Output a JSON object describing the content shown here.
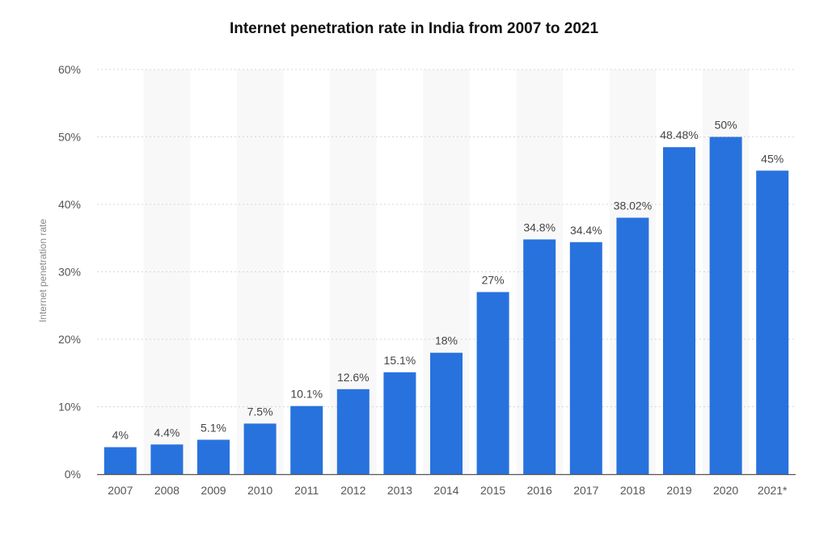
{
  "chart_data": {
    "type": "bar",
    "title": "Internet penetration rate in India from 2007 to 2021",
    "xlabel": "",
    "ylabel": "Internet penetration rate",
    "categories": [
      "2007",
      "2008",
      "2009",
      "2010",
      "2011",
      "2012",
      "2013",
      "2014",
      "2015",
      "2016",
      "2017",
      "2018",
      "2019",
      "2020",
      "2021*"
    ],
    "values": [
      4,
      4.4,
      5.1,
      7.5,
      10.1,
      12.6,
      15.1,
      18,
      27,
      34.8,
      34.4,
      38.02,
      48.48,
      50,
      45
    ],
    "value_labels": [
      "4%",
      "4.4%",
      "5.1%",
      "7.5%",
      "10.1%",
      "12.6%",
      "15.1%",
      "18%",
      "27%",
      "34.8%",
      "34.4%",
      "38.02%",
      "48.48%",
      "50%",
      "45%"
    ],
    "ylim": [
      0,
      60
    ],
    "yticks": [
      0,
      10,
      20,
      30,
      40,
      50,
      60
    ],
    "ytick_labels": [
      "0%",
      "10%",
      "20%",
      "30%",
      "40%",
      "50%",
      "60%"
    ],
    "grid": true,
    "legend": "none",
    "colors": {
      "bar": "#2872de",
      "band": "#f8f8f8"
    }
  }
}
